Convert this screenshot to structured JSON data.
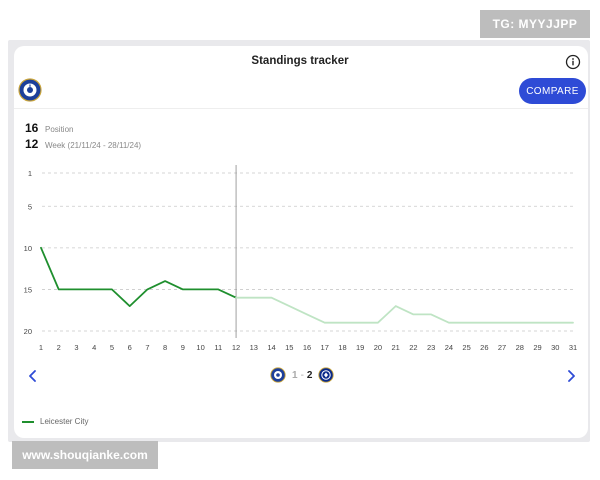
{
  "header": {
    "title": "Standings tracker",
    "compare_label": "COMPARE"
  },
  "stats": [
    {
      "value": "16",
      "label": "Position"
    },
    {
      "value": "12",
      "label": "Week (21/11/24 - 28/11/24)"
    }
  ],
  "match": {
    "home_score": "1",
    "separator": "-",
    "away_score": "2"
  },
  "legend": {
    "label": "Leicester City"
  },
  "watermarks": {
    "top_right": "TG: MYYJJPP",
    "bottom_left": "www.shouqianke.com"
  },
  "colors": {
    "series": "#1f8f2e",
    "projection": "#bfe4c4",
    "accent": "#2e4bd6"
  },
  "icons": {
    "info": "info-icon",
    "prev": "chevron-left-icon",
    "next": "chevron-right-icon"
  },
  "chart_data": {
    "type": "line",
    "x": [
      1,
      2,
      3,
      4,
      5,
      6,
      7,
      8,
      9,
      10,
      11,
      12,
      13,
      14,
      15,
      16,
      17,
      18,
      19,
      20,
      21,
      22,
      23,
      24,
      25,
      26,
      27,
      28,
      29,
      30,
      31
    ],
    "yticks": [
      1,
      5,
      10,
      15,
      20
    ],
    "ylim": [
      20,
      1
    ],
    "y_inverted": true,
    "current_week": 12,
    "series": [
      {
        "name": "Leicester City",
        "x": [
          1,
          2,
          3,
          4,
          5,
          6,
          7,
          8,
          9,
          10,
          11,
          12
        ],
        "values": [
          10,
          15,
          15,
          15,
          15,
          17,
          15,
          14,
          15,
          15,
          15,
          16
        ]
      },
      {
        "x": [
          12,
          13,
          14,
          15,
          16,
          17,
          18,
          19,
          20,
          21,
          22,
          23,
          24,
          25,
          26,
          27,
          28,
          29,
          30,
          31
        ],
        "values": [
          16,
          16,
          16,
          17,
          18,
          19,
          19,
          19,
          19,
          17,
          18,
          18,
          19,
          19,
          19,
          19,
          19,
          19,
          19,
          19
        ]
      }
    ],
    "grid": true,
    "legend_position": "bottom-left"
  }
}
